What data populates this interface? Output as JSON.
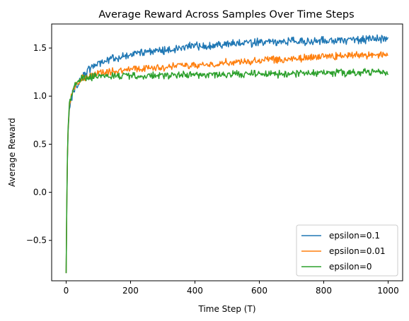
{
  "chart_data": {
    "type": "line",
    "title": "Average Reward Across Samples Over Time Steps",
    "xlabel": "Time Step (T)",
    "ylabel": "Average Reward",
    "xlim": [
      -45,
      1045
    ],
    "ylim": [
      -0.92,
      1.75
    ],
    "xticks": [
      0,
      200,
      400,
      600,
      800,
      1000
    ],
    "xtick_labels": [
      "0",
      "200",
      "400",
      "600",
      "800",
      "1000"
    ],
    "yticks": [
      -0.5,
      0.0,
      0.5,
      1.0,
      1.5
    ],
    "ytick_labels": [
      "−0.5",
      "0.0",
      "0.5",
      "1.0",
      "1.5"
    ],
    "grid": false,
    "legend_position": "lower-right",
    "series": [
      {
        "name": "epsilon=0.1",
        "color": "#1f77b4",
        "x": [
          0,
          3,
          6,
          10,
          15,
          20,
          30,
          40,
          50,
          60,
          80,
          100,
          150,
          200,
          250,
          300,
          350,
          400,
          450,
          500,
          550,
          600,
          650,
          700,
          750,
          800,
          850,
          900,
          950,
          1000
        ],
        "y": [
          -0.84,
          0.2,
          0.62,
          0.88,
          0.95,
          1.02,
          1.1,
          1.16,
          1.2,
          1.24,
          1.3,
          1.35,
          1.39,
          1.43,
          1.46,
          1.48,
          1.5,
          1.52,
          1.53,
          1.54,
          1.55,
          1.56,
          1.56,
          1.57,
          1.57,
          1.58,
          1.58,
          1.59,
          1.59,
          1.59
        ],
        "noise": 0.035
      },
      {
        "name": "epsilon=0.01",
        "color": "#ff7f0e",
        "x": [
          0,
          3,
          6,
          10,
          15,
          20,
          30,
          40,
          50,
          60,
          80,
          100,
          150,
          200,
          250,
          300,
          350,
          400,
          450,
          500,
          550,
          600,
          650,
          700,
          750,
          800,
          850,
          900,
          950,
          1000
        ],
        "y": [
          -0.84,
          0.22,
          0.64,
          0.9,
          0.98,
          1.05,
          1.12,
          1.15,
          1.18,
          1.2,
          1.22,
          1.24,
          1.26,
          1.28,
          1.29,
          1.3,
          1.31,
          1.32,
          1.33,
          1.35,
          1.36,
          1.37,
          1.38,
          1.39,
          1.4,
          1.41,
          1.42,
          1.42,
          1.43,
          1.43
        ],
        "noise": 0.03
      },
      {
        "name": "epsilon=0",
        "color": "#2ca02c",
        "x": [
          0,
          3,
          6,
          10,
          15,
          20,
          30,
          40,
          50,
          60,
          80,
          100,
          150,
          200,
          250,
          300,
          350,
          400,
          450,
          500,
          550,
          600,
          650,
          700,
          750,
          800,
          850,
          900,
          950,
          1000
        ],
        "y": [
          -0.84,
          0.24,
          0.66,
          0.92,
          1.0,
          1.06,
          1.13,
          1.16,
          1.18,
          1.19,
          1.2,
          1.2,
          1.21,
          1.21,
          1.21,
          1.22,
          1.22,
          1.22,
          1.22,
          1.23,
          1.23,
          1.23,
          1.23,
          1.23,
          1.24,
          1.24,
          1.24,
          1.24,
          1.25,
          1.25
        ],
        "noise": 0.03
      }
    ]
  }
}
